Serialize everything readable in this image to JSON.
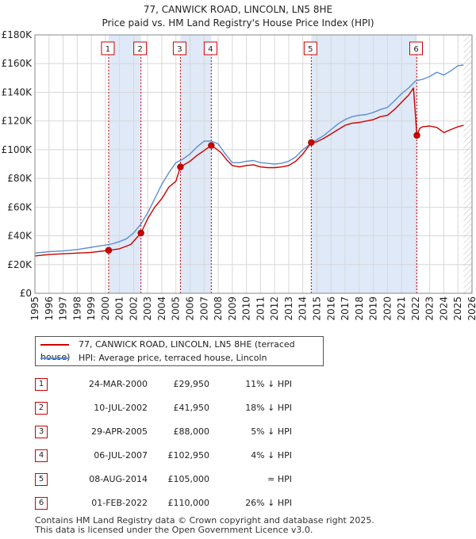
{
  "title_line1": "77, CANWICK ROAD, LINCOLN, LN5 8HE",
  "title_line2": "Price paid vs. HM Land Registry's House Price Index (HPI)",
  "colors": {
    "property": "#cc0000",
    "hpi": "#5b8fd4",
    "shade": "#dfe9f7",
    "grid": "#d8d8d8"
  },
  "legend": {
    "property_label": "77, CANWICK ROAD, LINCOLN, LN5 8HE (terraced house)",
    "hpi_label": "HPI: Average price, terraced house, Lincoln"
  },
  "chart_data": {
    "type": "line",
    "title": "77, CANWICK ROAD, LINCOLN, LN5 8HE — Price paid vs. HM Land Registry's House Price Index (HPI)",
    "xlabel": "",
    "ylabel": "",
    "xlim": [
      1995,
      2026
    ],
    "ylim": [
      0,
      180000
    ],
    "x_ticks": [
      1995,
      1996,
      1997,
      1998,
      1999,
      2000,
      2001,
      2002,
      2003,
      2004,
      2005,
      2006,
      2007,
      2008,
      2009,
      2010,
      2011,
      2012,
      2013,
      2014,
      2015,
      2016,
      2017,
      2018,
      2019,
      2020,
      2021,
      2022,
      2023,
      2024,
      2025,
      2026
    ],
    "y_ticks": [
      0,
      20000,
      40000,
      60000,
      80000,
      100000,
      120000,
      140000,
      160000,
      180000
    ],
    "y_tick_labels": [
      "£0",
      "£20K",
      "£40K",
      "£60K",
      "£80K",
      "£100K",
      "£120K",
      "£140K",
      "£160K",
      "£180K"
    ],
    "grid": true,
    "series": [
      {
        "name": "HPI: Average price, terraced house, Lincoln",
        "x": [
          1995,
          1996,
          1997,
          1998,
          1999,
          1999.6,
          2000,
          2000.5,
          2001,
          2001.5,
          2002,
          2002.5,
          2003,
          2003.5,
          2004,
          2004.5,
          2005,
          2005.5,
          2006,
          2006.5,
          2007,
          2007.5,
          2008,
          2008.5,
          2009,
          2009.5,
          2010,
          2010.5,
          2011,
          2011.5,
          2012,
          2012.5,
          2013,
          2013.5,
          2014,
          2014.6,
          2015,
          2015.5,
          2016,
          2016.5,
          2017,
          2017.5,
          2018,
          2018.5,
          2019,
          2019.5,
          2020,
          2020.5,
          2021,
          2021.5,
          2022,
          2022.5,
          2023,
          2023.5,
          2024,
          2024.5,
          2025,
          2025.4
        ],
        "y": [
          28000,
          29000,
          29500,
          30500,
          32000,
          33000,
          33500,
          34500,
          36000,
          38000,
          42000,
          48000,
          56000,
          66000,
          76000,
          84000,
          91000,
          93500,
          97000,
          102000,
          106000,
          106000,
          104000,
          97000,
          91000,
          91000,
          92000,
          92500,
          91000,
          90500,
          90000,
          90500,
          92000,
          95000,
          100000,
          104500,
          107000,
          110000,
          114000,
          118000,
          121000,
          123000,
          124000,
          124500,
          126000,
          128000,
          129500,
          134000,
          139000,
          143000,
          148000,
          149000,
          151000,
          154000,
          152000,
          155000,
          158500,
          159000
        ]
      },
      {
        "name": "77, CANWICK ROAD, LINCOLN, LN5 8HE (terraced house)",
        "x": [
          1995,
          1996,
          1997,
          1998,
          1999,
          2000.23,
          2001,
          2001.8,
          2002.52,
          2003,
          2003.5,
          2004,
          2004.5,
          2005.0,
          2005.32,
          2006,
          2006.5,
          2007.51,
          2007.8,
          2008.2,
          2008.6,
          2009,
          2009.5,
          2010,
          2010.5,
          2011,
          2011.5,
          2012,
          2012.5,
          2013,
          2013.5,
          2014,
          2014.6,
          2015,
          2015.5,
          2016,
          2016.5,
          2017,
          2017.5,
          2018,
          2018.5,
          2019,
          2019.5,
          2020,
          2020.5,
          2021,
          2021.5,
          2021.85,
          2022.09,
          2022.3,
          2022.5,
          2023,
          2023.5,
          2024,
          2024.5,
          2025,
          2025.4
        ],
        "y": [
          26000,
          27000,
          27500,
          28000,
          28500,
          29950,
          31000,
          34000,
          41950,
          52000,
          60000,
          66000,
          74000,
          78000,
          88000,
          92000,
          96000,
          102950,
          101000,
          98000,
          93000,
          89000,
          88000,
          89000,
          89500,
          88000,
          87500,
          87500,
          88000,
          89000,
          92000,
          97000,
          105000,
          105500,
          108000,
          111000,
          114000,
          117000,
          118500,
          119000,
          120000,
          121000,
          123000,
          124000,
          128000,
          133000,
          138000,
          143000,
          110000,
          115000,
          116000,
          116500,
          115500,
          112000,
          114000,
          116000,
          117000
        ]
      }
    ],
    "sales": [
      {
        "num": "1",
        "x": 2000.23,
        "date": "24-MAR-2000",
        "price": 29950,
        "price_label": "£29,950",
        "hpi_rel": "11% ↓ HPI"
      },
      {
        "num": "2",
        "x": 2002.52,
        "date": "10-JUL-2002",
        "price": 41950,
        "price_label": "£41,950",
        "hpi_rel": "18% ↓ HPI"
      },
      {
        "num": "3",
        "x": 2005.32,
        "date": "29-APR-2005",
        "price": 88000,
        "price_label": "£88,000",
        "hpi_rel": "5% ↓ HPI"
      },
      {
        "num": "4",
        "x": 2007.51,
        "date": "06-JUL-2007",
        "price": 102950,
        "price_label": "£102,950",
        "hpi_rel": "4% ↓ HPI"
      },
      {
        "num": "5",
        "x": 2014.6,
        "date": "08-AUG-2014",
        "price": 105000,
        "price_label": "£105,000",
        "hpi_rel": "≈ HPI"
      },
      {
        "num": "6",
        "x": 2022.09,
        "date": "01-FEB-2022",
        "price": 110000,
        "price_label": "£110,000",
        "hpi_rel": "26% ↓ HPI"
      }
    ],
    "shaded_spans": [
      [
        2000.23,
        2002.52
      ],
      [
        2005.32,
        2007.51
      ],
      [
        2014.6,
        2022.09
      ]
    ],
    "forecast_from": 2025.4
  },
  "footer_line1": "Contains HM Land Registry data © Crown copyright and database right 2025.",
  "footer_line2": "This data is licensed under the Open Government Licence v3.0."
}
